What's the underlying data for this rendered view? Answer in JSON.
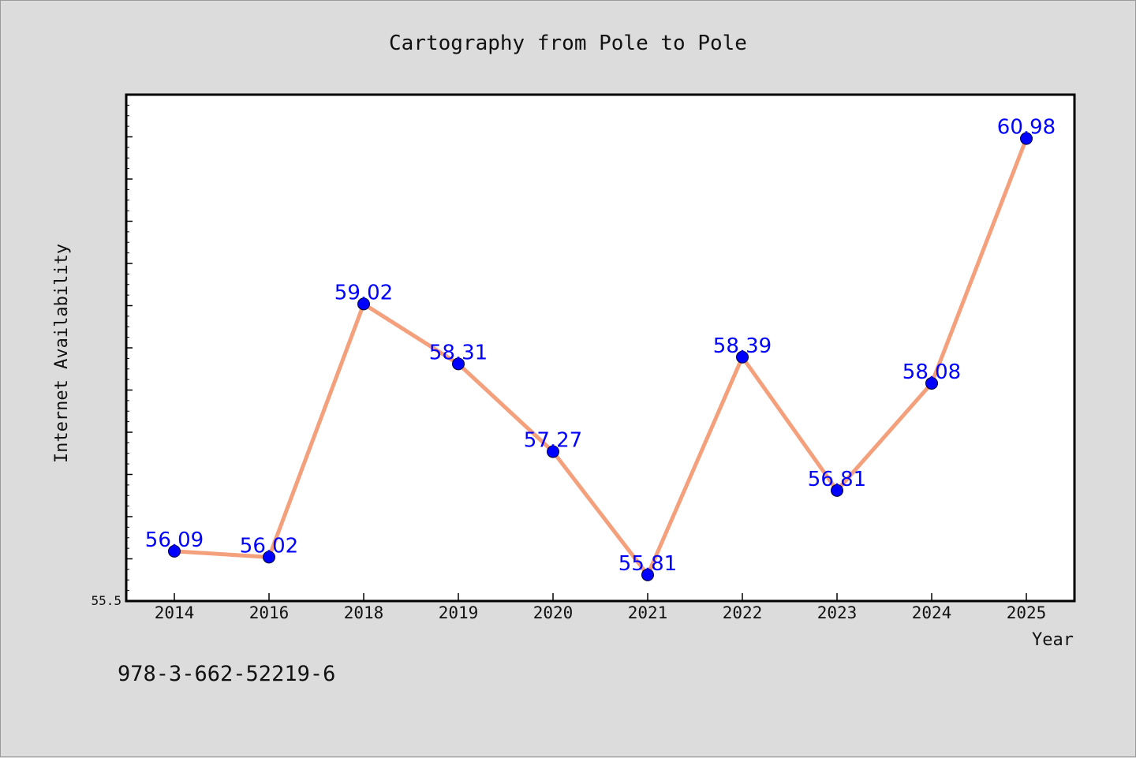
{
  "chart_data": {
    "type": "line",
    "title": "Cartography from Pole to Pole",
    "xlabel": "Year",
    "ylabel": "Internet Availability",
    "categories": [
      "2014",
      "2016",
      "2018",
      "2019",
      "2020",
      "2021",
      "2022",
      "2023",
      "2024",
      "2025"
    ],
    "series": [
      {
        "values": [
          56.09,
          56.02,
          59.02,
          58.31,
          57.27,
          55.81,
          58.39,
          56.81,
          58.08,
          60.98
        ],
        "labels": [
          "56.09",
          "56.02",
          "59.02",
          "58.31",
          "57.27",
          "55.81",
          "58.39",
          "56.81",
          "58.08",
          "60.98"
        ]
      }
    ],
    "ylim": [
      55.5,
      61.5
    ],
    "yticks_labeled": [
      "55.5"
    ],
    "grid": false,
    "legend": "none",
    "colors": {
      "line": "#f4a07c",
      "marker": "#0000ff",
      "data_label": "#0000ff",
      "plot_background": "#ffffff",
      "page_background": "#dcdcdc"
    }
  },
  "footer": {
    "isbn": "978-3-662-52219-6"
  }
}
